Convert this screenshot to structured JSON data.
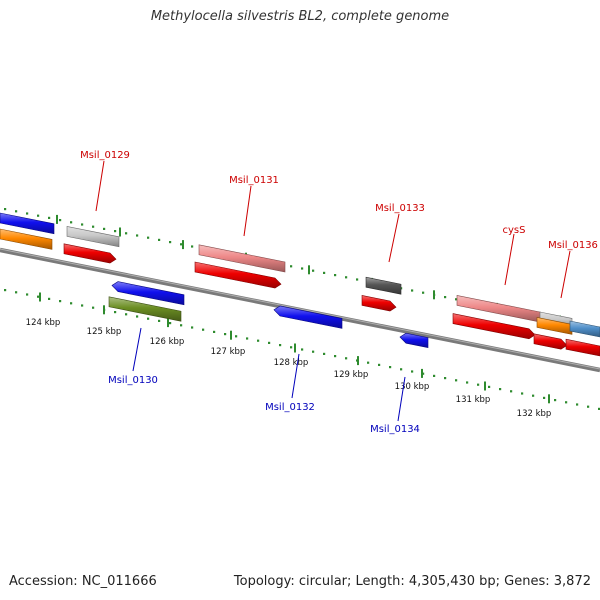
{
  "title": "Methylocella silvestris BL2, complete genome",
  "footer": {
    "accession": "Accession: NC_011666",
    "summary": "Topology: circular; Length: 4,305,430 bp; Genes: 3,872"
  },
  "colors": {
    "backbone": "#7a7a7a",
    "tick": "#2e8b2e",
    "label_top": "#cc0000",
    "label_bottom": "#0000bb",
    "red": "#ee0000",
    "pink": "#ee8888",
    "blue": "#1010ee",
    "orange": "#ff8800",
    "olive": "#6b8e23",
    "gray_light": "#c8c8c8",
    "gray_dark": "#555555",
    "steel": "#4f8fc9"
  },
  "scale": {
    "labels": [
      "124 kbp",
      "125 kbp",
      "126 kbp",
      "127 kbp",
      "128 kbp",
      "129 kbp",
      "130 kbp",
      "131 kbp",
      "132 kbp"
    ]
  },
  "gene_labels": {
    "top": [
      "Msil_0129",
      "Msil_0131",
      "Msil_0133",
      "cysS",
      "Msil_0136"
    ],
    "bottom": [
      "Msil_0130",
      "Msil_0132",
      "Msil_0134"
    ]
  }
}
